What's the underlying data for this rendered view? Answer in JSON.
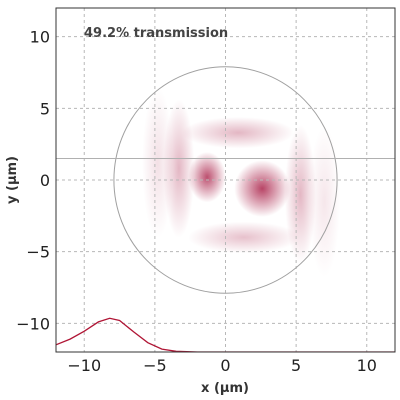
{
  "chart_data": {
    "type": "heatmap",
    "annotation": "49.2% transmission",
    "xlabel": "x (µm)",
    "ylabel": "y (µm)",
    "xlim": [
      -12,
      12
    ],
    "ylim": [
      -12,
      12
    ],
    "x_ticks": [
      -10,
      -5,
      0,
      5,
      10
    ],
    "y_ticks": [
      -10,
      -5,
      0,
      5,
      10
    ],
    "x_tick_labels": [
      "−10",
      "−5",
      "0",
      "5",
      "10"
    ],
    "y_tick_labels": [
      "−10",
      "−5",
      "0",
      "5",
      "10"
    ],
    "grid": true,
    "aperture_circle": {
      "center": [
        0,
        0
      ],
      "radius": 7.9
    },
    "horizontal_cut_y": 1.5,
    "intensity_blobs": [
      {
        "x": -1.3,
        "y": 0.2,
        "sx": 0.6,
        "sy": 0.8,
        "amp": 0.85
      },
      {
        "x": 2.6,
        "y": -0.6,
        "sx": 0.9,
        "sy": 0.9,
        "amp": 0.9
      },
      {
        "x": -3.3,
        "y": 0.8,
        "sx": 0.5,
        "sy": 2.2,
        "amp": 0.35
      },
      {
        "x": 0.9,
        "y": 3.3,
        "sx": 1.8,
        "sy": 0.5,
        "amp": 0.35
      },
      {
        "x": 1.3,
        "y": -4.0,
        "sx": 1.8,
        "sy": 0.5,
        "amp": 0.3
      },
      {
        "x": 5.3,
        "y": -1.0,
        "sx": 0.5,
        "sy": 2.2,
        "amp": 0.35
      },
      {
        "x": -4.8,
        "y": 1.2,
        "sx": 0.5,
        "sy": 2.4,
        "amp": 0.15
      },
      {
        "x": 7.0,
        "y": -1.5,
        "sx": 0.5,
        "sy": 2.4,
        "amp": 0.12
      }
    ],
    "profile_curve": {
      "baseline_y": -12,
      "points": [
        [
          -12,
          -11.5
        ],
        [
          -11,
          -11.1
        ],
        [
          -10,
          -10.55
        ],
        [
          -9,
          -9.9
        ],
        [
          -8.2,
          -9.65
        ],
        [
          -7.5,
          -9.8
        ],
        [
          -6.5,
          -10.6
        ],
        [
          -5.5,
          -11.35
        ],
        [
          -4.5,
          -11.8
        ],
        [
          -3.5,
          -11.95
        ],
        [
          -2,
          -12
        ],
        [
          0,
          -12
        ],
        [
          3,
          -12
        ],
        [
          6,
          -12
        ],
        [
          9,
          -12
        ],
        [
          12,
          -12
        ]
      ]
    },
    "colors": {
      "intensity": "#b03055",
      "profile": "#b01535",
      "grid": "#b8b8b8",
      "circle": "#a0a0a0",
      "cut_line": "#b0b0b0"
    }
  }
}
